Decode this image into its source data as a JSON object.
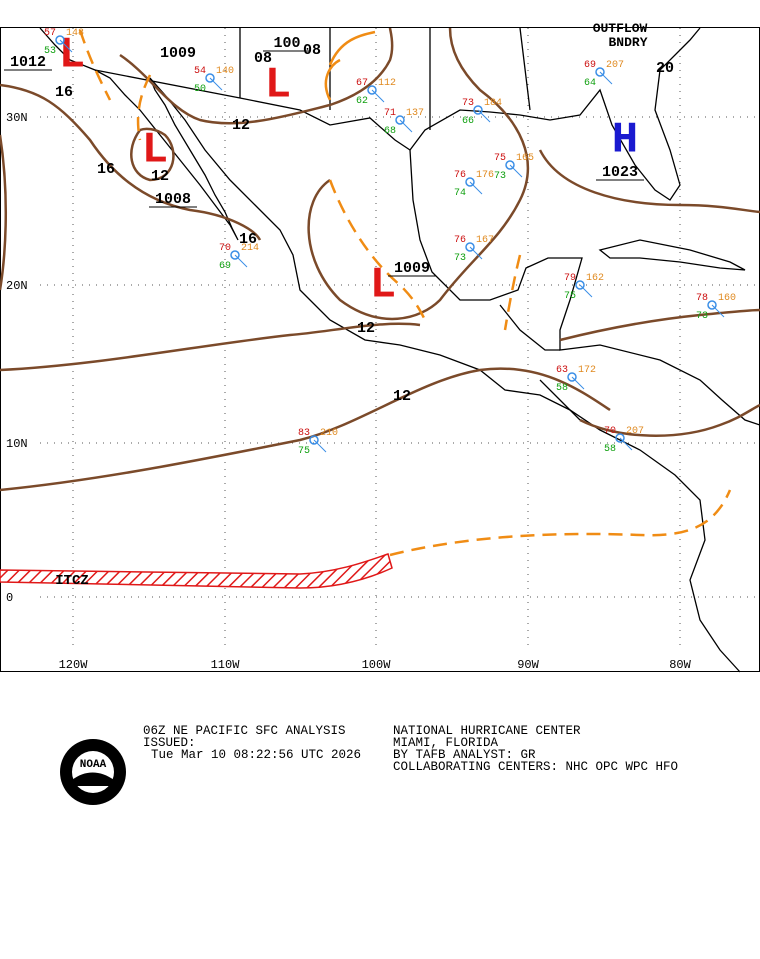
{
  "map": {
    "lat_labels": [
      "30N",
      "20N",
      "10N",
      "0"
    ],
    "lon_labels": [
      "120W",
      "110W",
      "100W",
      "90W",
      "80W"
    ],
    "centers": [
      {
        "symbol": "L",
        "pressure": "1012"
      },
      {
        "symbol": "L",
        "pressure": "1008"
      },
      {
        "symbol": "L",
        "pressure": "100"
      },
      {
        "symbol": "L",
        "pressure": "1009"
      },
      {
        "symbol": "H",
        "pressure": "1023"
      }
    ],
    "isobar_labels": [
      "1009",
      "16",
      "12",
      "16",
      "12",
      "16",
      "12",
      "12",
      "08",
      "08",
      "20"
    ],
    "features": [
      "ITCZ",
      "OUTFLOW",
      "BNDRY"
    ],
    "stations": [
      {
        "temp": "57",
        "dew": "53",
        "pressure": "148"
      },
      {
        "temp": "54",
        "dew": "50",
        "pressure": "140"
      },
      {
        "temp": "67",
        "dew": "62",
        "pressure": "112"
      },
      {
        "temp": "71",
        "dew": "68",
        "pressure": "137"
      },
      {
        "temp": "73",
        "dew": "66",
        "pressure": "184"
      },
      {
        "temp": "75",
        "dew": "73",
        "pressure": "165"
      },
      {
        "temp": "76",
        "dew": "74",
        "pressure": "176"
      },
      {
        "temp": "76",
        "dew": "73",
        "pressure": "167"
      },
      {
        "temp": "79",
        "dew": "75",
        "pressure": "162"
      },
      {
        "temp": "78",
        "dew": "73",
        "pressure": "160"
      },
      {
        "temp": "69",
        "dew": "64",
        "pressure": "207"
      },
      {
        "temp": "63",
        "dew": "58",
        "pressure": "172"
      },
      {
        "temp": "70",
        "dew": "58",
        "pressure": "207"
      },
      {
        "temp": "83",
        "dew": "75",
        "pressure": "210"
      },
      {
        "temp": "70",
        "dew": "69",
        "pressure": "214"
      }
    ]
  },
  "footer": {
    "product": "06Z NE PACIFIC SFC ANALYSIS",
    "issued": "ISSUED:",
    "time": "Tue Mar 10 08:22:56 UTC 2026",
    "center": "NATIONAL HURRICANE CENTER",
    "location": "MIAMI, FLORIDA",
    "analyst": "BY TAFB ANALYST: GR",
    "collab": "COLLABORATING CENTERS: NHC OPC WPC HFO",
    "logo": "NOAA"
  }
}
